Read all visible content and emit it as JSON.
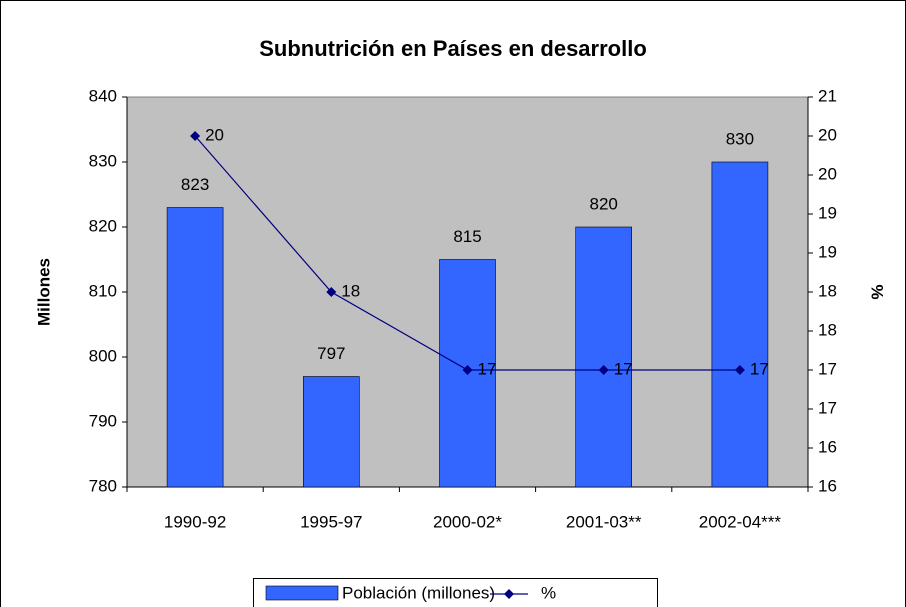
{
  "chart_data": {
    "type": "bar-line",
    "title": "Subnutrición en Países en desarrollo",
    "ylabel": "Millones",
    "y2label": "%",
    "categories": [
      "1990-92",
      "1995-97",
      "2000-02*",
      "2001-03**",
      "2002-04***"
    ],
    "series": [
      {
        "name": "Población (millones)",
        "type": "bar",
        "color": "#3366ff",
        "values": [
          823,
          797,
          815,
          820,
          830
        ]
      },
      {
        "name": "%",
        "type": "line",
        "color": "#000080",
        "axis": "y2",
        "values": [
          20,
          18,
          17,
          17,
          17
        ]
      }
    ],
    "ylim": [
      780,
      840
    ],
    "yticks": [
      780,
      790,
      800,
      810,
      820,
      830,
      840
    ],
    "y2lim": [
      15.5,
      20.5
    ],
    "y2ticks": [
      {
        "value": 15.5,
        "label": "16"
      },
      16,
      {
        "value": 16.5,
        "label": "17"
      },
      17,
      {
        "value": 17.5,
        "label": "18"
      },
      18,
      {
        "value": 18.5,
        "label": "19"
      },
      19,
      {
        "value": 19.5,
        "label": "20"
      },
      20,
      {
        "value": 20.5,
        "label": "21"
      }
    ],
    "plot_background": "#c0c0c0",
    "legend": "bottom"
  }
}
